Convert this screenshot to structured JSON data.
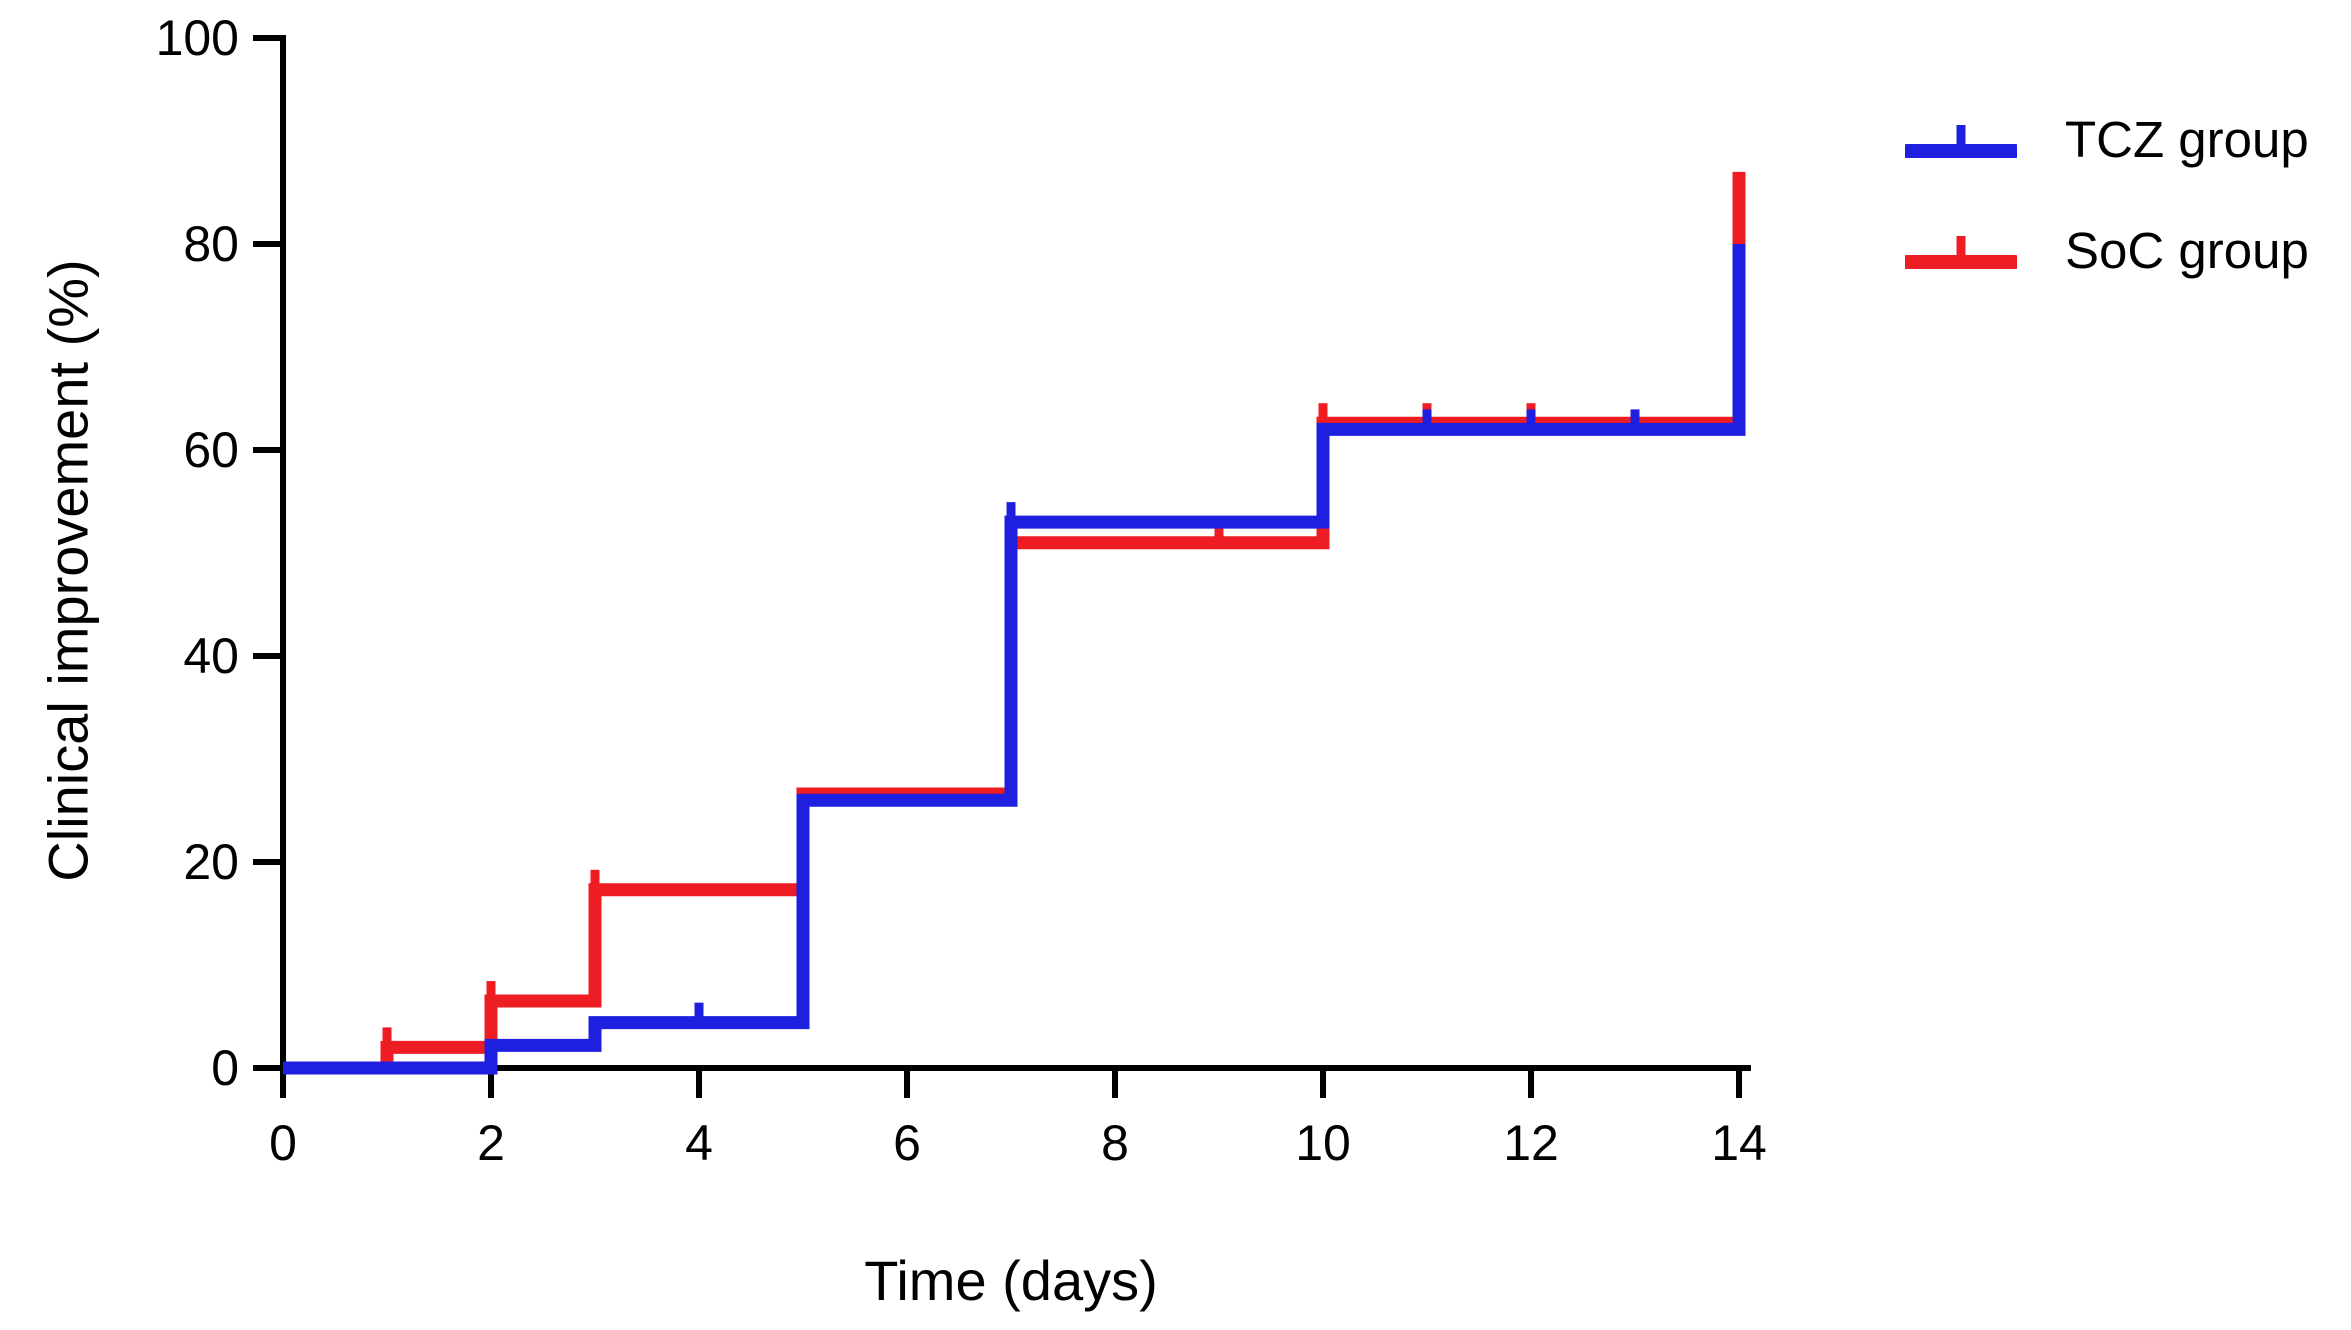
{
  "figure": {
    "background": "#ffffff"
  },
  "chart_data": {
    "type": "line",
    "subtype": "kaplan-meier-step",
    "title": "",
    "xlabel": "Time (days)",
    "ylabel": "Clinical improvement (%)",
    "xlim": [
      0,
      14
    ],
    "ylim": [
      0,
      100
    ],
    "x_ticks": [
      "0",
      "2",
      "4",
      "6",
      "8",
      "10",
      "12",
      "14"
    ],
    "y_ticks": [
      "0",
      "20",
      "40",
      "60",
      "80",
      "100"
    ],
    "grid": false,
    "legend_position": "top-right",
    "axis_color": "#000000",
    "series": [
      {
        "name": "SoC group",
        "color": "#ee1c23",
        "points": [
          [
            0,
            0
          ],
          [
            1,
            0
          ],
          [
            1,
            2
          ],
          [
            2,
            2
          ],
          [
            2,
            6.5
          ],
          [
            3,
            6.5
          ],
          [
            3,
            17.3
          ],
          [
            5,
            17.3
          ],
          [
            5,
            26.6
          ],
          [
            7,
            26.6
          ],
          [
            7,
            51
          ],
          [
            10,
            51
          ],
          [
            10,
            62.6
          ],
          [
            14,
            62.6
          ],
          [
            14,
            87
          ]
        ],
        "censor_marks": [
          [
            1,
            2
          ],
          [
            2,
            6.5
          ],
          [
            3,
            17.3
          ],
          [
            9,
            51
          ],
          [
            10,
            62.6
          ],
          [
            11,
            62.6
          ],
          [
            12,
            62.6
          ]
        ]
      },
      {
        "name": "TCZ group",
        "color": "#1f1fe0",
        "points": [
          [
            0,
            0
          ],
          [
            2,
            0
          ],
          [
            2,
            2.2
          ],
          [
            3,
            2.2
          ],
          [
            3,
            4.4
          ],
          [
            5,
            4.4
          ],
          [
            5,
            26
          ],
          [
            7,
            26
          ],
          [
            7,
            53
          ],
          [
            10,
            53
          ],
          [
            10,
            62
          ],
          [
            14,
            62
          ],
          [
            14,
            80
          ]
        ],
        "censor_marks": [
          [
            4,
            4.4
          ],
          [
            7,
            53
          ],
          [
            11,
            62
          ],
          [
            12,
            62
          ],
          [
            13,
            62
          ]
        ]
      }
    ]
  },
  "legend": {
    "items": [
      {
        "label": "TCZ group",
        "color": "#1f1fe0"
      },
      {
        "label": "SoC group",
        "color": "#ee1c23"
      }
    ]
  }
}
